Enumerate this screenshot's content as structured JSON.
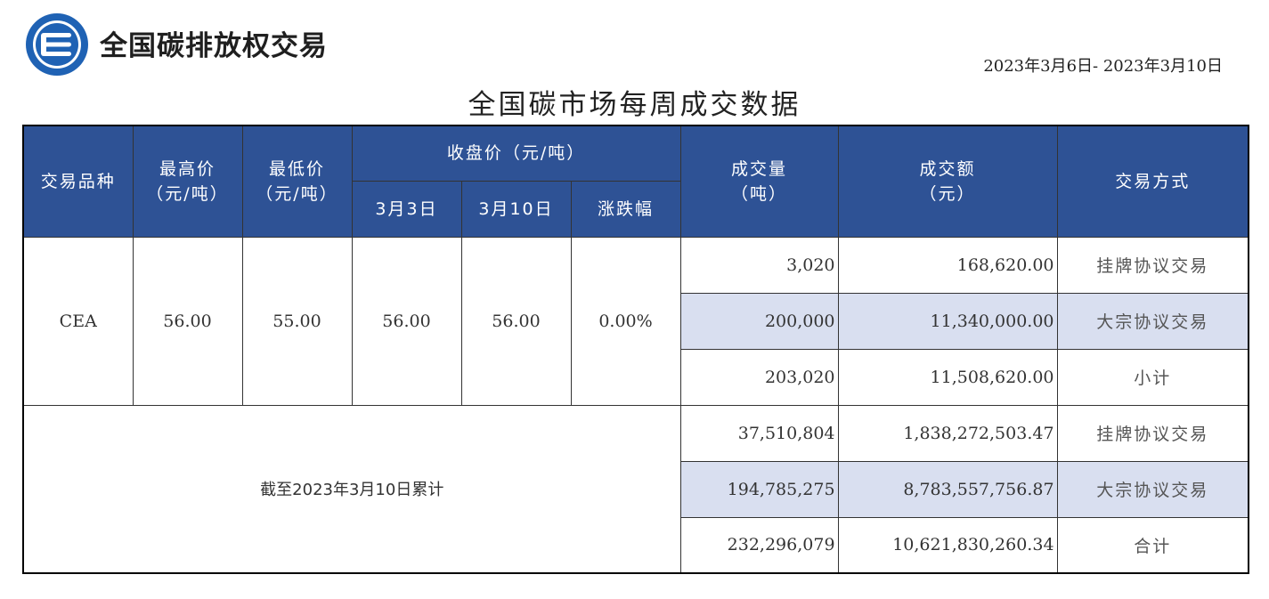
{
  "brand": {
    "name": "全国碳排放权交易",
    "logo_icon": "carbon-exchange-logo-icon",
    "colors": {
      "logo_blue": "#1f62b4",
      "header_blue": "#2e5295",
      "row_shade": "#d9dff0"
    }
  },
  "date_range": "2023年3月6日- 2023年3月10日",
  "title": "全国碳市场每周成交数据",
  "table": {
    "headers": {
      "product": "交易品种",
      "high_price": "最高价",
      "high_price_unit": "（元/吨）",
      "low_price": "最低价",
      "low_price_unit": "（元/吨）",
      "close_price": "收盘价（元/吨）",
      "close_date_1": "3月3日",
      "close_date_2": "3月10日",
      "change": "涨跌幅",
      "volume": "成交量",
      "volume_unit": "（吨）",
      "amount": "成交额",
      "amount_unit": "（元）",
      "method": "交易方式"
    },
    "week": {
      "product": "CEA",
      "high": "56.00",
      "low": "55.00",
      "close_1": "56.00",
      "close_2": "56.00",
      "change": "0.00%",
      "rows": [
        {
          "volume": "3,020",
          "amount": "168,620.00",
          "method": "挂牌协议交易"
        },
        {
          "volume": "200,000",
          "amount": "11,340,000.00",
          "method": "大宗协议交易"
        },
        {
          "volume": "203,020",
          "amount": "11,508,620.00",
          "method": "小计"
        }
      ]
    },
    "cumulative": {
      "label": "截至2023年3月10日累计",
      "rows": [
        {
          "volume": "37,510,804",
          "amount": "1,838,272,503.47",
          "method": "挂牌协议交易"
        },
        {
          "volume": "194,785,275",
          "amount": "8,783,557,756.87",
          "method": "大宗协议交易"
        },
        {
          "volume": "232,296,079",
          "amount": "10,621,830,260.34",
          "method": "合计"
        }
      ]
    }
  }
}
